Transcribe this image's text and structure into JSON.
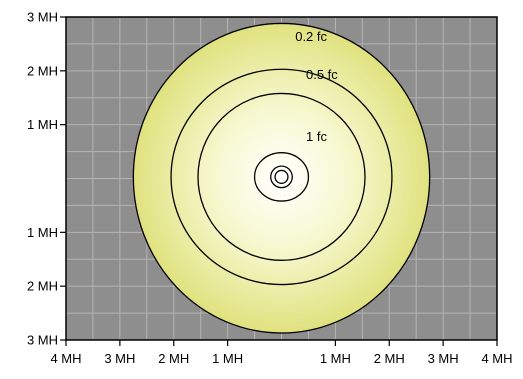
{
  "chart_data": {
    "type": "contour",
    "title": "",
    "xlabel": "",
    "ylabel": "",
    "units": "MH",
    "xlim": [
      -4,
      4
    ],
    "ylim": [
      -3,
      3
    ],
    "x_ticks": [
      {
        "value": -4,
        "label": "4 MH"
      },
      {
        "value": -3,
        "label": "3 MH"
      },
      {
        "value": -2,
        "label": "2 MH"
      },
      {
        "value": -1,
        "label": "1 MH"
      },
      {
        "value": 1,
        "label": "1 MH"
      },
      {
        "value": 2,
        "label": "2 MH"
      },
      {
        "value": 3,
        "label": "3 MH"
      },
      {
        "value": 4,
        "label": "4 MH"
      }
    ],
    "y_ticks": [
      {
        "value": 3,
        "label": "3 MH"
      },
      {
        "value": 2,
        "label": "2 MH"
      },
      {
        "value": 1,
        "label": "1 MH"
      },
      {
        "value": -1,
        "label": "1 MH"
      },
      {
        "value": -2,
        "label": "2 MH"
      },
      {
        "value": -3,
        "label": "3 MH"
      }
    ],
    "grid": true,
    "contours": [
      {
        "label": "0.2 fc",
        "rx": 2.75,
        "ry_top": 2.85,
        "ry_bottom": 2.9,
        "label_at": [
          0.55,
          2.55
        ]
      },
      {
        "label": "0.5 fc",
        "rx": 2.05,
        "ry_top": 2.0,
        "ry_bottom": 2.0,
        "label_at": [
          0.75,
          1.85
        ]
      },
      {
        "label": "1 fc",
        "rx": 1.55,
        "ry_top": 1.55,
        "ry_bottom": 1.55,
        "label_at": [
          0.65,
          0.7
        ]
      },
      {
        "label": "",
        "rx": 0.5,
        "ry_top": 0.45,
        "ry_bottom": 0.45
      },
      {
        "label": "",
        "rx": 0.2,
        "ry_top": 0.2,
        "ry_bottom": 0.2
      },
      {
        "label": "",
        "rx": 0.12,
        "ry_top": 0.12,
        "ry_bottom": 0.12
      }
    ],
    "colors": {
      "background": "#8e8e8e",
      "grid": "#b4b4b4",
      "glow_center": "#ffffff",
      "glow_edge": "#e0e27f",
      "line": "#000000"
    }
  }
}
